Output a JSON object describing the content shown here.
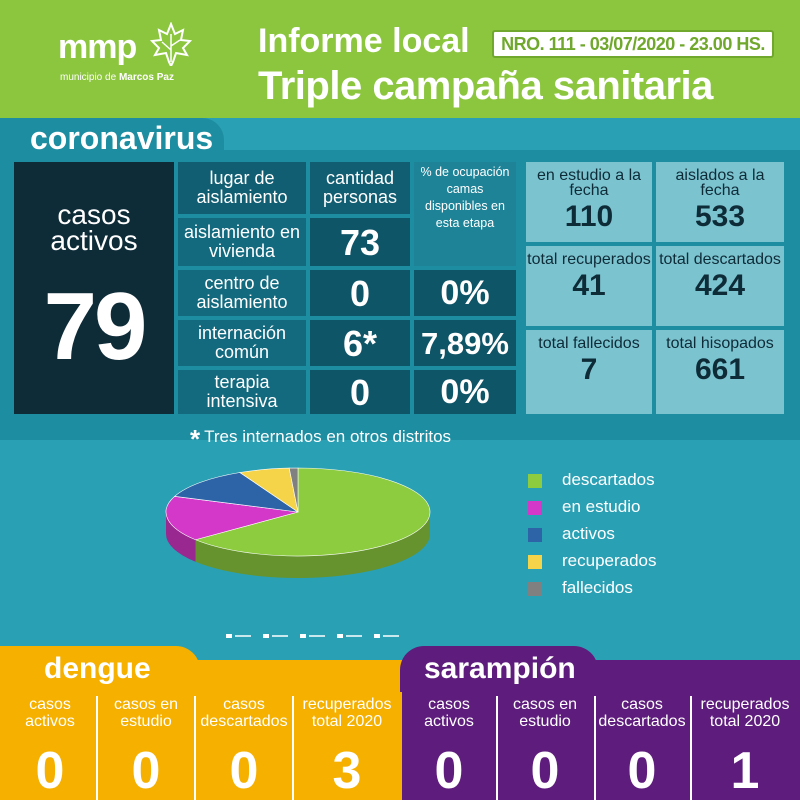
{
  "header": {
    "logo_text": "mmp",
    "logo_sub_prefix": "municipio de",
    "logo_sub_strong": "Marcos Paz",
    "title_line1": "Informe local",
    "report_info": "NRO. 111 - 03/07/2020 - 23.00 HS.",
    "title_line2": "Triple campaña sanitaria"
  },
  "coronavirus": {
    "title": "coronavirus",
    "active_label_1": "casos",
    "active_label_2": "activos",
    "active_count": "79",
    "table": {
      "headers": {
        "place": "lugar de aislamiento",
        "quantity": "cantidad personas",
        "occupancy": "% de ocupación camas disponibles en esta etapa"
      },
      "rows": [
        {
          "place": "aislamiento en vivienda",
          "quantity": "73",
          "occupancy": ""
        },
        {
          "place": "centro de aislamiento",
          "quantity": "0",
          "occupancy": "0%"
        },
        {
          "place": "internación común",
          "quantity": "6*",
          "occupancy": "7,89%"
        },
        {
          "place": "terapia intensiva",
          "quantity": "0",
          "occupancy": "0%"
        }
      ]
    },
    "stats": [
      {
        "label": "en estudio a la fecha",
        "value": "110"
      },
      {
        "label": "aislados a la fecha",
        "value": "533"
      },
      {
        "label": "total recuperados",
        "value": "41"
      },
      {
        "label": "total descartados",
        "value": "424"
      },
      {
        "label": "total fallecidos",
        "value": "7"
      },
      {
        "label": "total hisopados",
        "value": "661"
      }
    ],
    "footnote": "Tres internados en otros distritos"
  },
  "chart_data": {
    "type": "pie",
    "title": "",
    "series": [
      {
        "name": "descartados",
        "value": 424,
        "color": "#8dcc3f"
      },
      {
        "name": "en estudio",
        "value": 110,
        "color": "#d438c8"
      },
      {
        "name": "activos",
        "value": 79,
        "color": "#2d64a8"
      },
      {
        "name": "recuperados",
        "value": 41,
        "color": "#f5d44a"
      },
      {
        "name": "fallecidos",
        "value": 7,
        "color": "#808080"
      }
    ],
    "legend_position": "right"
  },
  "dengue": {
    "title": "dengue",
    "columns": [
      {
        "label": "casos activos",
        "value": "0"
      },
      {
        "label": "casos en estudio",
        "value": "0"
      },
      {
        "label": "casos descartados",
        "value": "0"
      },
      {
        "label": "recuperados total 2020",
        "value": "3"
      }
    ]
  },
  "sarampion": {
    "title": "sarampión",
    "columns": [
      {
        "label": "casos activos",
        "value": "0"
      },
      {
        "label": "casos en estudio",
        "value": "0"
      },
      {
        "label": "casos descartados",
        "value": "0"
      },
      {
        "label": "recuperados total 2020",
        "value": "1"
      }
    ]
  },
  "colors": {
    "header_green": "#8cc63e",
    "teal": "#2aa0b4",
    "dark_navy": "#0e2b38",
    "dengue_orange": "#f5b000",
    "sarampion_purple": "#5e1d7c"
  }
}
